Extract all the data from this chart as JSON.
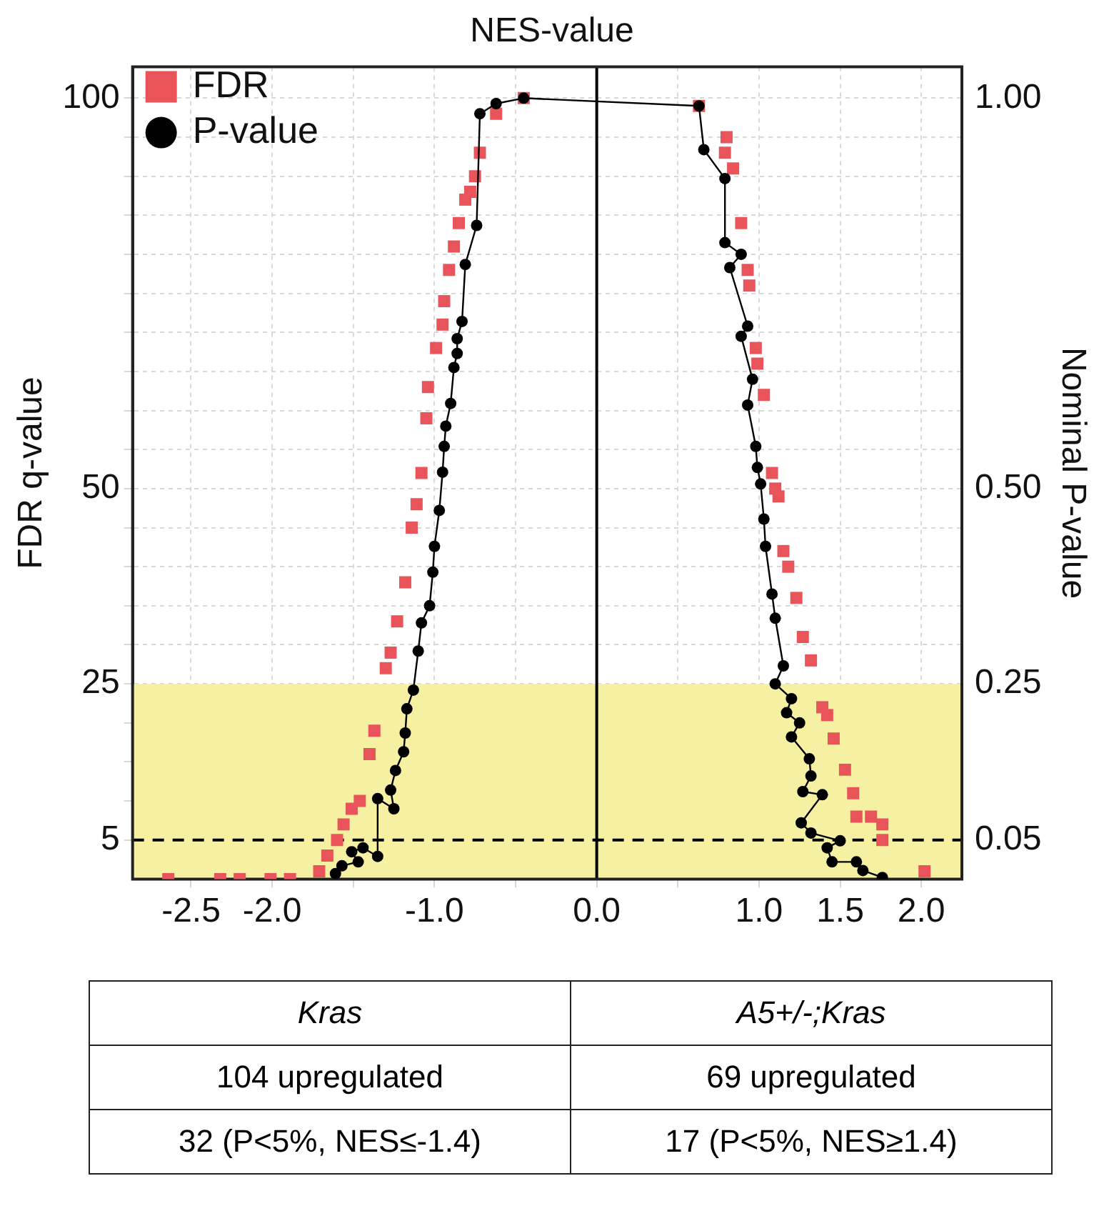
{
  "chart_data": {
    "type": "scatter",
    "title": "NES-value",
    "ylabel": "FDR q-value",
    "y2label": "Nominal P-value",
    "xlim": [
      -2.86,
      2.25
    ],
    "xticks": [
      -2.5,
      {
        "value": -2,
        "label": "-2.0"
      },
      {
        "value": -1.5,
        "label": null
      },
      {
        "value": -1,
        "label": "-1.0"
      },
      {
        "value": -0.5,
        "label": null
      },
      {
        "value": 0,
        "label": "0.0"
      },
      {
        "value": 0.5,
        "label": null
      },
      {
        "value": 1,
        "label": "1.0"
      },
      1.5,
      {
        "value": 2,
        "label": "2.0"
      }
    ],
    "ylim": [
      0,
      104
    ],
    "yticks": [
      5,
      {
        "value": 10,
        "label": null
      },
      {
        "value": 15,
        "label": null
      },
      {
        "value": 20,
        "label": null
      },
      25,
      {
        "value": 30,
        "label": null
      },
      {
        "value": 35,
        "label": null
      },
      {
        "value": 40,
        "label": null
      },
      {
        "value": 45,
        "label": null
      },
      50,
      {
        "value": 55,
        "label": null
      },
      {
        "value": 60,
        "label": null
      },
      {
        "value": 65,
        "label": null
      },
      {
        "value": 70,
        "label": null
      },
      {
        "value": 75,
        "label": null
      },
      {
        "value": 80,
        "label": null
      },
      {
        "value": 85,
        "label": null
      },
      {
        "value": 90,
        "label": null
      },
      {
        "value": 95,
        "label": null
      },
      100
    ],
    "y2lim": [
      0,
      1.04
    ],
    "y2ticks": [
      {
        "value": 0.05,
        "label": "0.05"
      },
      {
        "value": 0.25,
        "label": "0.25"
      },
      {
        "value": 0.5,
        "label": "0.50"
      },
      {
        "value": 1,
        "label": "1.00"
      }
    ],
    "grid": true,
    "legend": "top left",
    "series": [
      {
        "name": "FDR",
        "type": "scatter",
        "marker": "square",
        "color": "#e8545a",
        "x": [
          -0.45,
          -0.62,
          -0.72,
          -0.75,
          -0.78,
          -0.81,
          -0.85,
          -0.88,
          -0.91,
          -0.94,
          -0.95,
          -0.99,
          -1.04,
          -1.05,
          -1.08,
          -1.11,
          -1.14,
          -1.18,
          -1.23,
          -1.27,
          -1.3,
          -1.37,
          -1.4,
          -1.46,
          -1.51,
          -1.56,
          -1.6,
          -1.66,
          -1.71,
          -1.89,
          -2.01,
          -2.2,
          -2.32,
          -2.64,
          0.63,
          0.8,
          0.79,
          0.84,
          0.89,
          0.93,
          0.94,
          0.98,
          0.99,
          1.03,
          1.08,
          1.1,
          1.12,
          1.15,
          1.18,
          1.23,
          1.27,
          1.32,
          1.39,
          1.42,
          1.46,
          1.53,
          1.58,
          1.6,
          1.69,
          1.76,
          1.76,
          2.02
        ],
        "values": [
          100,
          98,
          93,
          90,
          88,
          87,
          84,
          81,
          78,
          74,
          71,
          68,
          63,
          59,
          52,
          48,
          45,
          38,
          33,
          29,
          27,
          19,
          16,
          10,
          9,
          7,
          5,
          3,
          1,
          0,
          0,
          0,
          0,
          0,
          99,
          95,
          93,
          91,
          84,
          78,
          76,
          68,
          66,
          62,
          52,
          50,
          49,
          42,
          40,
          36,
          31,
          28,
          22,
          21,
          18,
          14,
          11,
          8,
          8,
          7,
          5,
          1
        ]
      },
      {
        "name": "P-value",
        "type": "line",
        "marker": "circle",
        "color": "#000000",
        "axis": "y2",
        "line_style": "solid",
        "x": [
          -1.61,
          -1.57,
          -1.47,
          -1.51,
          -1.44,
          -1.35,
          -1.35,
          -1.25,
          -1.27,
          -1.24,
          -1.19,
          -1.18,
          -1.17,
          -1.13,
          -1.1,
          -1.08,
          -1.03,
          -1.01,
          -1,
          -0.97,
          -0.95,
          -0.94,
          -0.93,
          -0.9,
          -0.88,
          -0.86,
          -0.86,
          -0.83,
          -0.81,
          -0.74,
          -0.72,
          -0.62,
          -0.45,
          0.63,
          0.66,
          0.79,
          0.79,
          0.89,
          0.82,
          0.93,
          0.89,
          0.96,
          0.93,
          0.98,
          0.99,
          1.01,
          1.03,
          1.04,
          1.08,
          1.1,
          1.15,
          1.1,
          1.2,
          1.17,
          1.25,
          1.2,
          1.31,
          1.32,
          1.27,
          1.39,
          1.26,
          1.32,
          1.5,
          1.42,
          1.45,
          1.6,
          1.64,
          1.76
        ],
        "values": [
          0.007,
          0.017,
          0.022,
          0.035,
          0.04,
          0.029,
          0.103,
          0.09,
          0.114,
          0.139,
          0.163,
          0.187,
          0.218,
          0.242,
          0.292,
          0.328,
          0.35,
          0.393,
          0.426,
          0.472,
          0.521,
          0.554,
          0.58,
          0.609,
          0.655,
          0.673,
          0.692,
          0.714,
          0.787,
          0.837,
          0.98,
          0.993,
          1.0,
          0.99,
          0.934,
          0.897,
          0.815,
          0.8,
          0.783,
          0.708,
          0.695,
          0.64,
          0.607,
          0.554,
          0.527,
          0.506,
          0.461,
          0.426,
          0.365,
          0.334,
          0.273,
          0.25,
          0.231,
          0.213,
          0.2,
          0.182,
          0.154,
          0.132,
          0.112,
          0.108,
          0.072,
          0.059,
          0.049,
          0.04,
          0.022,
          0.022,
          0.011,
          0.002
        ]
      }
    ],
    "ref_lines": [
      {
        "axis": "y",
        "value": 5,
        "color": "#000000",
        "line_style": "dashed"
      },
      {
        "axis": "x",
        "value": 0,
        "color": "#000000",
        "line_style": "solid"
      }
    ],
    "bands": [
      {
        "axis": "y",
        "from": 0,
        "to": 25,
        "color": "#f6f0a2"
      }
    ],
    "annotations": [
      "Kras",
      "A5+/-;Kras",
      "104 upregulated",
      "69 upregulated",
      "32 (P<5%, NES≤-1.4)",
      "17 (P<5%, NES≥1.4)"
    ]
  }
}
